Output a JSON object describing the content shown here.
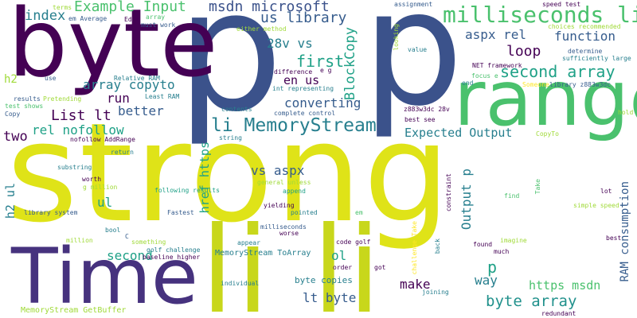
{
  "palette": {
    "dark_purple": "#440154",
    "indigo": "#46327e",
    "blue": "#365c8d",
    "slate": "#3b528b",
    "teal": "#277f8e",
    "teal_dark": "#21918c",
    "green_teal": "#1fa187",
    "green": "#4ac16d",
    "light_green": "#a0da39",
    "yellow": "#e6e11d",
    "bright_yellow": "#fde725"
  },
  "words": {
    "strong": "strong",
    "p1": "p",
    "p2": "p",
    "byte": "byte",
    "range": "range",
    "time": "Time",
    "li_large": "li li",
    "milliseconds_li": "milliseconds li",
    "second_array": "second array",
    "memorystream_li": "li MemoryStream",
    "example_input": "Example Input",
    "msdn_microsoft": "msdn microsoft",
    "us_library": "us library",
    "index": "index",
    "blockcopy": "BlockCopy",
    "aspx_rel": "aspx rel",
    "function": "function",
    "loop": "loop",
    "v28_vs": "28v vs",
    "first": "first",
    "en_us": "en us",
    "array_copyto": "array copyto",
    "run": "run",
    "better": "better",
    "list_lt": "List lt",
    "rel_nofollow": "rel nofollow",
    "two": "two",
    "converting": "converting",
    "expected_output": "Expected Output",
    "output_p": "Output p",
    "vs_aspx": "vs aspx",
    "href_https": "href https",
    "ul": "ul",
    "h2_ul": "h2 ul",
    "second": "second",
    "ol": "ol",
    "make": "make",
    "way": "way",
    "lt_byte": "lt byte",
    "byte_array": "byte array",
    "https_msdn": "https msdn",
    "ram_consumption": "RAM consumption",
    "p_small": "p",
    "h2": "h2",
    "memorystream_toarray": "MemoryStream ToArray",
    "byte_copies": "byte copies",
    "memorystream_getbuffer": "MemoryStream GetBuffer",
    "em_average": "em Average",
    "edit": "Edit",
    "array_small": "array",
    "must_work": "must work",
    "either_method": "either method",
    "assignment": "assignment",
    "speed_test": "speed test",
    "choices_recommended": "choices recommended",
    "determine": "determine",
    "sufficiently_large": "sufficiently large",
    "terms": "terms",
    "looking": "looking",
    "value": "value",
    "net_framework": "NET framework",
    "focus_e": "focus e",
    "end": "end",
    "someone": "Someone",
    "library_z883": "library z883w3dc",
    "relative_ram": "Relative RAM",
    "use": "use",
    "difference": "difference",
    "e_g": "e g",
    "int_representing": "int representing",
    "results": "results",
    "pretending": "Pretending",
    "test_shows": "test shows",
    "least_ram": "Least RAM",
    "copy": "Copy",
    "contents": "contents",
    "complete_control": "complete control",
    "z883_28v": "z883w3dc 28v",
    "best_see": "best see",
    "hold": "hold",
    "copyto": "CopyTo",
    "nofollow_addrange": "nofollow AddRange",
    "string": "string",
    "return": "return",
    "substring": "substring",
    "general_unless": "general unless",
    "append": "append",
    "constraint": "constraint",
    "find": "find",
    "take": "Take",
    "lot": "lot",
    "worth": "worth",
    "g_million": "g million",
    "following_results": "following results",
    "library_system": "library system",
    "yielding": "yielding",
    "simple_speed": "simple speed",
    "fastest": "Fastest",
    "pointed": "pointed",
    "em": "em",
    "bool": "bool",
    "milliseconds_small": "milliseconds",
    "worse": "worse",
    "million": "million",
    "c": "C",
    "something": "something",
    "appear": "appear",
    "code_golf": "code golf",
    "challenge_take": "challenge Take",
    "back": "back",
    "imagine": "imagine",
    "best": "best",
    "golf_challenge": "golf challenge",
    "baseline_higher": "baseline higher",
    "found": "found",
    "much": "much",
    "order": "order",
    "got": "got",
    "individual": "individual",
    "joining": "joining",
    "redundant": "redundant"
  }
}
